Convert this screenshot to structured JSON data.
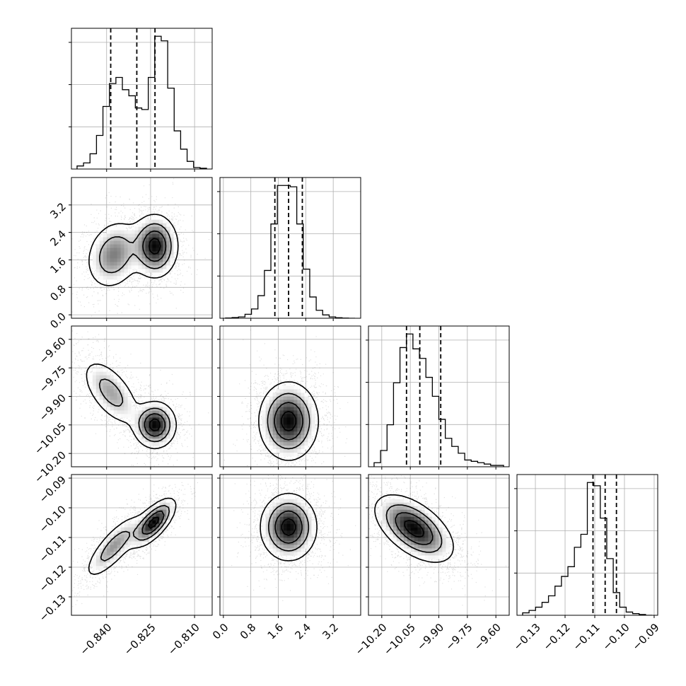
{
  "chart_data": {
    "type": "corner",
    "parameters": [
      {
        "range": [
          -0.852,
          -0.804
        ],
        "ticks": [
          -0.84,
          -0.825,
          -0.81
        ],
        "tick_labels": [
          "−0.840",
          "−0.825",
          "−0.810"
        ],
        "quantiles": [
          -0.8386,
          -0.8297,
          -0.8235
        ],
        "histogram": [
          2,
          4,
          10,
          22,
          41,
          56,
          60,
          52,
          48,
          40,
          39,
          60,
          87,
          84,
          53,
          25,
          13,
          5,
          1,
          0.5
        ]
      },
      {
        "range": [
          -0.1,
          4.0
        ],
        "ticks": [
          0.0,
          0.8,
          1.6,
          2.4,
          3.2
        ],
        "tick_labels": [
          "0.0",
          "0.8",
          "1.6",
          "2.4",
          "3.2"
        ],
        "quantiles": [
          1.5,
          1.9,
          2.3
        ],
        "histogram": [
          0.2,
          0.5,
          1,
          3,
          7,
          17,
          36,
          71,
          100,
          100,
          99,
          71,
          37,
          16,
          6,
          2.5,
          1,
          0.4,
          0.1,
          0
        ]
      },
      {
        "range": [
          -10.27,
          -9.53
        ],
        "ticks": [
          -10.2,
          -10.05,
          -9.9,
          -9.75,
          -9.6
        ],
        "tick_labels": [
          "−10.20",
          "−10.05",
          "−9.90",
          "−9.75",
          "−9.60"
        ],
        "quantiles": [
          -10.07,
          -10.0,
          -9.89
        ],
        "histogram": [
          3,
          12,
          31,
          62,
          88,
          98,
          87,
          80,
          66,
          52,
          35,
          21,
          15,
          10,
          5,
          4,
          3,
          2,
          1,
          1
        ]
      },
      {
        "range": [
          -0.1362,
          -0.0888
        ],
        "ticks": [
          -0.13,
          -0.12,
          -0.11,
          -0.1,
          -0.09
        ],
        "tick_labels": [
          "−0.13",
          "−0.12",
          "−0.11",
          "−0.10",
          "−0.09"
        ],
        "quantiles": [
          -0.1106,
          -0.1065,
          -0.1027
        ],
        "histogram": [
          1.5,
          3,
          5,
          8,
          12,
          18,
          24,
          30,
          42,
          50,
          82,
          80,
          60,
          35,
          14,
          5,
          2,
          1,
          0.5,
          0
        ]
      }
    ],
    "blobs": {
      "1,0": [
        {
          "center": [
            -0.8375,
            1.75
          ],
          "sd": [
            0.0047,
            0.5
          ],
          "rho": 0.2,
          "weight": 0.45
        },
        {
          "center": [
            -0.8235,
            2.0
          ],
          "sd": [
            0.0038,
            0.45
          ],
          "rho": 0.0,
          "weight": 0.55
        }
      ],
      "2,0": [
        {
          "center": [
            -0.8385,
            -9.88
          ],
          "sd": [
            0.005,
            0.09
          ],
          "rho": -0.6,
          "weight": 0.45
        },
        {
          "center": [
            -0.8235,
            -10.05
          ],
          "sd": [
            0.0035,
            0.06
          ],
          "rho": 0.0,
          "weight": 0.55
        }
      ],
      "2,1": [
        {
          "center": [
            1.9,
            -10.03
          ],
          "sd": [
            0.42,
            0.1
          ],
          "rho": 0.0,
          "weight": 1.0
        }
      ],
      "3,0": [
        {
          "center": [
            -0.8375,
            -0.113
          ],
          "sd": [
            0.005,
            0.0055
          ],
          "rho": 0.8,
          "weight": 0.45
        },
        {
          "center": [
            -0.824,
            -0.105
          ],
          "sd": [
            0.0037,
            0.004
          ],
          "rho": 0.7,
          "weight": 0.55
        }
      ],
      "3,1": [
        {
          "center": [
            1.9,
            -0.1065
          ],
          "sd": [
            0.4,
            0.0055
          ],
          "rho": 0.0,
          "weight": 1.0
        }
      ],
      "3,2": [
        {
          "center": [
            -10.03,
            -0.107
          ],
          "sd": [
            0.1,
            0.0055
          ],
          "rho": -0.55,
          "weight": 1.0
        }
      ]
    },
    "samples_per_panel": 2200
  }
}
